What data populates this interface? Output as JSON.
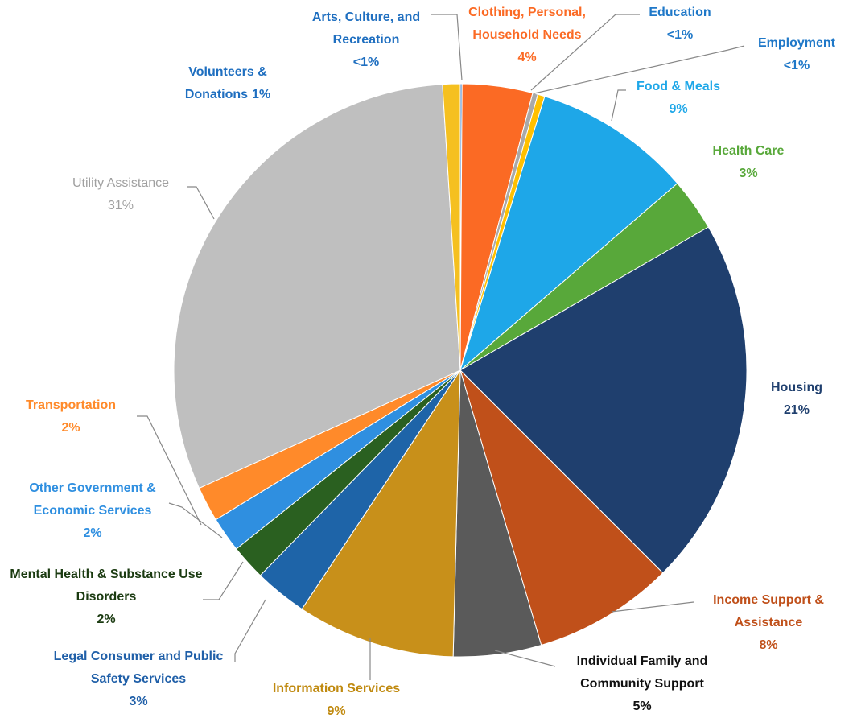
{
  "chart_data": {
    "type": "pie",
    "categories": [
      "Arts, Culture, and Recreation",
      "Clothing, Personal, Household Needs",
      "Education",
      "Employment",
      "Food & Meals",
      "Health Care",
      "Housing",
      "Income Support & Assistance",
      "Individual Family and Community Support",
      "Information Services",
      "Legal Consumer and Public Safety Services",
      "Mental Health & Substance Use Disorders",
      "Other Government & Economic Services",
      "Transportation",
      "Utility Assistance",
      "Volunteers & Donations"
    ],
    "values": [
      0.1,
      4,
      0.3,
      0.4,
      9,
      3,
      21,
      8,
      5,
      9,
      3,
      2,
      2,
      2,
      31,
      1
    ],
    "value_labels": [
      "<1%",
      "4%",
      "<1%",
      "<1%",
      "9%",
      "3%",
      "21%",
      "8%",
      "5%",
      "9%",
      "3%",
      "2%",
      "2%",
      "2%",
      "31%",
      "1%"
    ],
    "colors": [
      "#4a86c8",
      "#fb6a24",
      "#a9a9a9",
      "#ffc000",
      "#1ea7e8",
      "#58a83a",
      "#1f3f6e",
      "#c0501a",
      "#5a5a5a",
      "#c8901a",
      "#1e64a8",
      "#2a6020",
      "#2f8fe0",
      "#ff8a2a",
      "#bfbfbf",
      "#f5c020"
    ]
  }
}
